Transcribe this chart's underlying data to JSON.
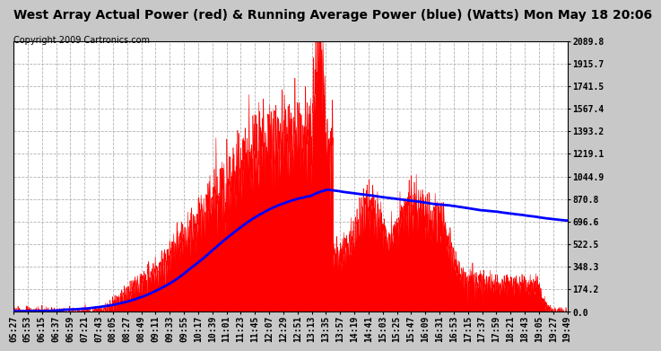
{
  "title": "West Array Actual Power (red) & Running Average Power (blue) (Watts) Mon May 18 20:06",
  "copyright": "Copyright 2009 Cartronics.com",
  "plot_bg_color": "#ffffff",
  "grid_color": "#aaaaaa",
  "y_max": 2089.8,
  "y_min": 0.0,
  "y_ticks": [
    0.0,
    174.2,
    348.3,
    522.5,
    696.6,
    870.8,
    1044.9,
    1219.1,
    1393.2,
    1567.4,
    1741.5,
    1915.7,
    2089.8
  ],
  "x_labels": [
    "05:27",
    "05:53",
    "06:15",
    "06:37",
    "06:59",
    "07:21",
    "07:43",
    "08:05",
    "08:27",
    "08:49",
    "09:11",
    "09:33",
    "09:55",
    "10:17",
    "10:39",
    "11:01",
    "11:23",
    "11:45",
    "12:07",
    "12:29",
    "12:51",
    "13:13",
    "13:35",
    "13:57",
    "14:19",
    "14:41",
    "15:03",
    "15:25",
    "15:47",
    "16:09",
    "16:31",
    "16:53",
    "17:15",
    "17:37",
    "17:59",
    "18:21",
    "18:43",
    "19:05",
    "19:27",
    "19:49"
  ],
  "red_color": "#ff0000",
  "blue_color": "#0000ff",
  "title_color": "#000000",
  "title_fontsize": 10,
  "copyright_fontsize": 7,
  "tick_fontsize": 7,
  "outer_bg": "#c8c8c8"
}
